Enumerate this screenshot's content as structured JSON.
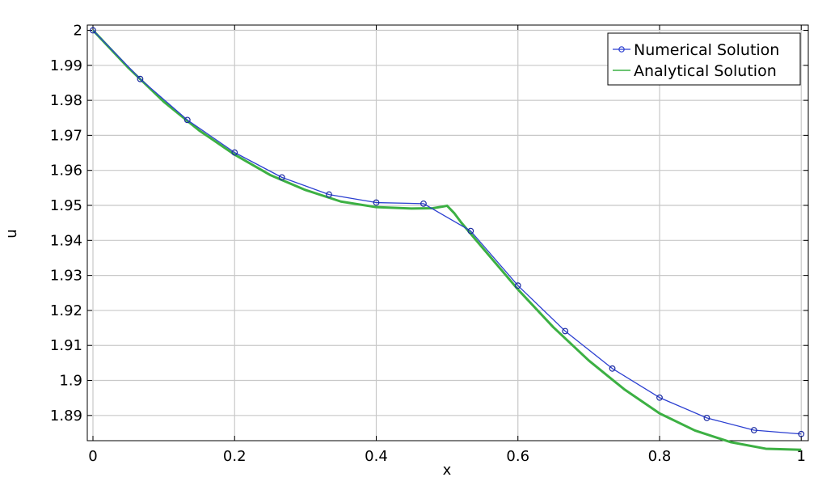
{
  "chart_data": {
    "type": "line",
    "xlabel": "x",
    "ylabel": "u",
    "xlim": [
      -0.008,
      1.01
    ],
    "ylim": [
      1.8828,
      2.0015
    ],
    "xticks": [
      0,
      0.2,
      0.4,
      0.6,
      0.8,
      1
    ],
    "xtick_labels": [
      "0",
      "0.2",
      "0.4",
      "0.6",
      "0.8",
      "1"
    ],
    "yticks": [
      1.89,
      1.9,
      1.91,
      1.92,
      1.93,
      1.94,
      1.95,
      1.96,
      1.97,
      1.98,
      1.99,
      2
    ],
    "ytick_labels": [
      "1.89",
      "1.9",
      "1.91",
      "1.92",
      "1.93",
      "1.94",
      "1.95",
      "1.96",
      "1.97",
      "1.98",
      "1.99",
      "2"
    ],
    "grid": true,
    "legend_position": "top-right",
    "series": [
      {
        "name": "Numerical Solution",
        "color": "#2b3fd1",
        "marker": "circle",
        "x": [
          0,
          0.0667,
          0.1333,
          0.2,
          0.2667,
          0.3333,
          0.4,
          0.4667,
          0.5333,
          0.6,
          0.6667,
          0.7333,
          0.8,
          0.8667,
          0.9333,
          1.0
        ],
        "y": [
          2.0,
          1.9861,
          1.9744,
          1.9651,
          1.958,
          1.9531,
          1.9508,
          1.9505,
          1.9427,
          1.9271,
          1.9141,
          1.9034,
          1.8951,
          1.8893,
          1.8858,
          1.8847
        ]
      },
      {
        "name": "Analytical Solution",
        "color": "#3cb043",
        "marker": "none",
        "x": [
          0,
          0.05,
          0.1,
          0.15,
          0.2,
          0.25,
          0.3,
          0.35,
          0.4,
          0.45,
          0.48,
          0.495,
          0.5,
          0.51,
          0.52,
          0.55,
          0.6,
          0.65,
          0.7,
          0.75,
          0.8,
          0.85,
          0.9,
          0.95,
          1.0
        ],
        "y": [
          2.0,
          1.9893,
          1.9796,
          1.9714,
          1.9645,
          1.9587,
          1.9544,
          1.9511,
          1.9495,
          1.9491,
          1.9492,
          1.9497,
          1.9499,
          1.9478,
          1.9451,
          1.9379,
          1.926,
          1.9152,
          1.9057,
          1.8975,
          1.8906,
          1.8857,
          1.8824,
          1.8805,
          1.8802
        ]
      }
    ]
  }
}
